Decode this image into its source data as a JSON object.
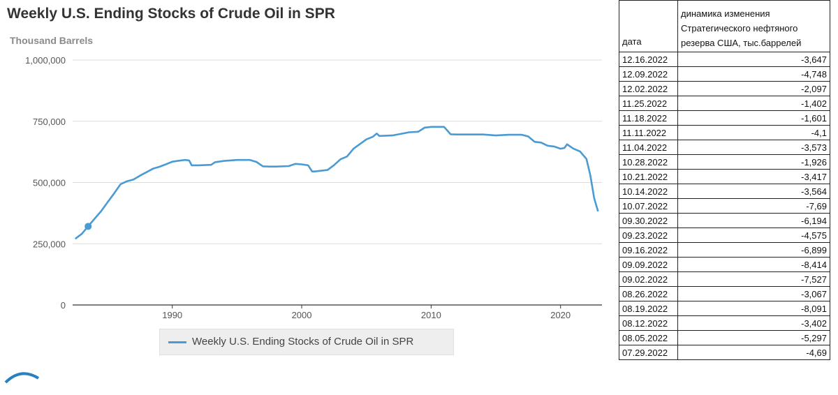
{
  "chart": {
    "title": "Weekly U.S. Ending Stocks of Crude Oil in SPR",
    "ylabel": "Thousand Barrels",
    "legend_label": "Weekly U.S. Ending Stocks of Crude Oil in SPR",
    "line_color": "#4a9bd3"
  },
  "chart_data": {
    "type": "line",
    "title": "Weekly U.S. Ending Stocks of Crude Oil in SPR",
    "ylabel": "Thousand Barrels",
    "xlabel": "",
    "xlim": [
      1982.3,
      2023.2
    ],
    "ylim": [
      0,
      1000000
    ],
    "x_ticks": [
      1990,
      2000,
      2010,
      2020
    ],
    "x_tick_labels": [
      "1990",
      "2000",
      "2010",
      "2020"
    ],
    "y_ticks": [
      0,
      250000,
      500000,
      750000,
      1000000
    ],
    "y_tick_labels": [
      "0",
      "250,000",
      "500,000",
      "750,000",
      "1,000,000"
    ],
    "grid": "horizontal",
    "legend": "bottom",
    "series": [
      {
        "name": "Weekly U.S. Ending Stocks of Crude Oil in SPR",
        "color": "#4a9bd3",
        "x": [
          1982.5,
          1983.0,
          1983.5,
          1984.0,
          1984.5,
          1985.0,
          1985.5,
          1986.0,
          1986.5,
          1987.0,
          1987.5,
          1988.0,
          1988.5,
          1989.0,
          1989.5,
          1990.0,
          1990.5,
          1991.0,
          1991.3,
          1991.5,
          1992.0,
          1993.0,
          1993.3,
          1994.0,
          1995.0,
          1996.0,
          1996.5,
          1997.0,
          1997.5,
          1998.0,
          1999.0,
          1999.5,
          2000.0,
          2000.5,
          2000.8,
          2001.0,
          2002.0,
          2002.5,
          2003.0,
          2003.5,
          2004.0,
          2004.5,
          2005.0,
          2005.5,
          2005.8,
          2006.0,
          2007.0,
          2008.0,
          2008.3,
          2009.0,
          2009.5,
          2010.0,
          2011.0,
          2011.5,
          2012.0,
          2013.0,
          2014.0,
          2015.0,
          2016.0,
          2017.0,
          2017.5,
          2018.0,
          2018.5,
          2019.0,
          2019.5,
          2020.0,
          2020.3,
          2020.5,
          2020.8,
          2021.0,
          2021.5,
          2022.0,
          2022.3,
          2022.6,
          2022.9
        ],
        "y": [
          270000,
          290000,
          321000,
          352000,
          383000,
          419000,
          455000,
          493000,
          505000,
          512000,
          528000,
          542000,
          556000,
          564000,
          574000,
          585000,
          589000,
          592000,
          590000,
          570000,
          570000,
          572000,
          583000,
          588000,
          592000,
          592000,
          584000,
          566000,
          565000,
          565000,
          567000,
          576000,
          574000,
          570000,
          545000,
          545000,
          551000,
          571000,
          595000,
          606000,
          638000,
          657000,
          676000,
          687000,
          700000,
          690000,
          692000,
          702000,
          705000,
          707000,
          724000,
          727000,
          727000,
          697000,
          696000,
          696000,
          696000,
          692000,
          695000,
          695000,
          688000,
          666000,
          663000,
          650000,
          647000,
          638000,
          641000,
          656000,
          645000,
          638000,
          627000,
          596000,
          530000,
          435000,
          382000
        ]
      }
    ]
  },
  "table": {
    "header_date": "дата",
    "header_value": "динамика изменения\nСтратегического нефтяного\nрезерва США, тыс.баррелей",
    "rows": [
      {
        "date": "12.16.2022",
        "value": "-3,647"
      },
      {
        "date": "12.09.2022",
        "value": "-4,748"
      },
      {
        "date": "12.02.2022",
        "value": "-2,097"
      },
      {
        "date": "11.25.2022",
        "value": "-1,402"
      },
      {
        "date": "11.18.2022",
        "value": "-1,601"
      },
      {
        "date": "11.11.2022",
        "value": "-4,1"
      },
      {
        "date": "11.04.2022",
        "value": "-3,573"
      },
      {
        "date": "10.28.2022",
        "value": "-1,926"
      },
      {
        "date": "10.21.2022",
        "value": "-3,417"
      },
      {
        "date": "10.14.2022",
        "value": "-3,564"
      },
      {
        "date": "10.07.2022",
        "value": "-7,69"
      },
      {
        "date": "09.30.2022",
        "value": "-6,194"
      },
      {
        "date": "09.23.2022",
        "value": "-4,575"
      },
      {
        "date": "09.16.2022",
        "value": "-6,899"
      },
      {
        "date": "09.09.2022",
        "value": "-8,414"
      },
      {
        "date": "09.02.2022",
        "value": "-7,527"
      },
      {
        "date": "08.26.2022",
        "value": "-3,067"
      },
      {
        "date": "08.19.2022",
        "value": "-8,091"
      },
      {
        "date": "08.12.2022",
        "value": "-3,402"
      },
      {
        "date": "08.05.2022",
        "value": "-5,297"
      },
      {
        "date": "07.29.2022",
        "value": "-4,69"
      }
    ]
  }
}
